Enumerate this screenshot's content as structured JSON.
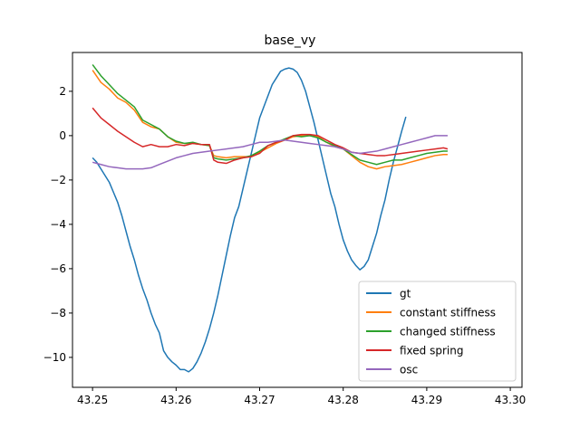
{
  "chart_data": {
    "type": "line",
    "title": "base_vy",
    "xlabel": "",
    "ylabel": "",
    "xlim": [
      43.2476,
      43.3014
    ],
    "ylim": [
      -11.35,
      3.75
    ],
    "xticks": [
      43.25,
      43.26,
      43.27,
      43.28,
      43.29,
      43.3
    ],
    "xtick_labels": [
      "43.25",
      "43.26",
      "43.27",
      "43.28",
      "43.29",
      "43.30"
    ],
    "yticks": [
      2,
      0,
      -2,
      -4,
      -6,
      -8,
      -10
    ],
    "ytick_labels": [
      "2",
      "0",
      "−2",
      "−4",
      "−6",
      "−8",
      "−10"
    ],
    "grid": false,
    "legend": {
      "position": "lower-right"
    },
    "series": [
      {
        "name": "gt",
        "color": "#1f77b4",
        "points": [
          [
            43.25,
            -1.0
          ],
          [
            43.2505,
            -1.2
          ],
          [
            43.251,
            -1.5
          ],
          [
            43.2515,
            -1.8
          ],
          [
            43.252,
            -2.1
          ],
          [
            43.2525,
            -2.55
          ],
          [
            43.253,
            -3.0
          ],
          [
            43.2535,
            -3.6
          ],
          [
            43.254,
            -4.3
          ],
          [
            43.2545,
            -5.0
          ],
          [
            43.255,
            -5.6
          ],
          [
            43.2555,
            -6.3
          ],
          [
            43.256,
            -6.9
          ],
          [
            43.2565,
            -7.4
          ],
          [
            43.257,
            -8.0
          ],
          [
            43.2575,
            -8.5
          ],
          [
            43.258,
            -8.9
          ],
          [
            43.2585,
            -9.7
          ],
          [
            43.259,
            -10.0
          ],
          [
            43.2595,
            -10.2
          ],
          [
            43.26,
            -10.35
          ],
          [
            43.2605,
            -10.55
          ],
          [
            43.261,
            -10.55
          ],
          [
            43.2615,
            -10.65
          ],
          [
            43.262,
            -10.5
          ],
          [
            43.2625,
            -10.2
          ],
          [
            43.263,
            -9.8
          ],
          [
            43.2635,
            -9.3
          ],
          [
            43.264,
            -8.7
          ],
          [
            43.2645,
            -8.0
          ],
          [
            43.265,
            -7.2
          ],
          [
            43.2655,
            -6.3
          ],
          [
            43.266,
            -5.4
          ],
          [
            43.2665,
            -4.5
          ],
          [
            43.267,
            -3.7
          ],
          [
            43.2675,
            -3.2
          ],
          [
            43.268,
            -2.4
          ],
          [
            43.2685,
            -1.6
          ],
          [
            43.269,
            -0.8
          ],
          [
            43.2695,
            0.0
          ],
          [
            43.27,
            0.8
          ],
          [
            43.2705,
            1.3
          ],
          [
            43.271,
            1.8
          ],
          [
            43.2715,
            2.3
          ],
          [
            43.272,
            2.6
          ],
          [
            43.2725,
            2.9
          ],
          [
            43.273,
            3.0
          ],
          [
            43.2735,
            3.05
          ],
          [
            43.274,
            3.0
          ],
          [
            43.2745,
            2.85
          ],
          [
            43.275,
            2.5
          ],
          [
            43.2755,
            2.0
          ],
          [
            43.276,
            1.3
          ],
          [
            43.2765,
            0.6
          ],
          [
            43.277,
            -0.2
          ],
          [
            43.2775,
            -1.0
          ],
          [
            43.278,
            -1.8
          ],
          [
            43.2785,
            -2.6
          ],
          [
            43.279,
            -3.2
          ],
          [
            43.2795,
            -4.0
          ],
          [
            43.28,
            -4.7
          ],
          [
            43.2805,
            -5.2
          ],
          [
            43.281,
            -5.6
          ],
          [
            43.2815,
            -5.85
          ],
          [
            43.282,
            -6.05
          ],
          [
            43.2825,
            -5.9
          ],
          [
            43.283,
            -5.6
          ],
          [
            43.2835,
            -5.0
          ],
          [
            43.284,
            -4.4
          ],
          [
            43.2845,
            -3.6
          ],
          [
            43.285,
            -2.9
          ],
          [
            43.2855,
            -2.0
          ],
          [
            43.286,
            -1.2
          ],
          [
            43.2865,
            -0.5
          ],
          [
            43.287,
            0.2
          ],
          [
            43.2875,
            0.85
          ]
        ]
      },
      {
        "name": "constant stiffness",
        "color": "#ff7f0e",
        "points": [
          [
            43.25,
            2.95
          ],
          [
            43.251,
            2.4
          ],
          [
            43.252,
            2.1
          ],
          [
            43.253,
            1.7
          ],
          [
            43.254,
            1.5
          ],
          [
            43.255,
            1.15
          ],
          [
            43.256,
            0.6
          ],
          [
            43.257,
            0.4
          ],
          [
            43.258,
            0.3
          ],
          [
            43.259,
            -0.05
          ],
          [
            43.26,
            -0.3
          ],
          [
            43.261,
            -0.35
          ],
          [
            43.262,
            -0.35
          ],
          [
            43.263,
            -0.4
          ],
          [
            43.264,
            -0.45
          ],
          [
            43.2645,
            -0.9
          ],
          [
            43.265,
            -0.95
          ],
          [
            43.266,
            -1.0
          ],
          [
            43.267,
            -0.95
          ],
          [
            43.268,
            -0.95
          ],
          [
            43.269,
            -0.95
          ],
          [
            43.27,
            -0.75
          ],
          [
            43.271,
            -0.55
          ],
          [
            43.272,
            -0.35
          ],
          [
            43.273,
            -0.2
          ],
          [
            43.274,
            -0.05
          ],
          [
            43.275,
            0.0
          ],
          [
            43.276,
            0.0
          ],
          [
            43.277,
            -0.05
          ],
          [
            43.278,
            -0.3
          ],
          [
            43.279,
            -0.5
          ],
          [
            43.28,
            -0.6
          ],
          [
            43.281,
            -0.9
          ],
          [
            43.282,
            -1.2
          ],
          [
            43.283,
            -1.4
          ],
          [
            43.284,
            -1.5
          ],
          [
            43.285,
            -1.4
          ],
          [
            43.286,
            -1.35
          ],
          [
            43.287,
            -1.3
          ],
          [
            43.288,
            -1.2
          ],
          [
            43.289,
            -1.1
          ],
          [
            43.29,
            -1.0
          ],
          [
            43.291,
            -0.9
          ],
          [
            43.292,
            -0.85
          ],
          [
            43.2925,
            -0.85
          ]
        ]
      },
      {
        "name": "changed stiffness",
        "color": "#2ca02c",
        "points": [
          [
            43.25,
            3.2
          ],
          [
            43.251,
            2.7
          ],
          [
            43.252,
            2.3
          ],
          [
            43.253,
            1.9
          ],
          [
            43.254,
            1.6
          ],
          [
            43.255,
            1.3
          ],
          [
            43.256,
            0.7
          ],
          [
            43.257,
            0.5
          ],
          [
            43.258,
            0.3
          ],
          [
            43.259,
            -0.05
          ],
          [
            43.26,
            -0.25
          ],
          [
            43.261,
            -0.35
          ],
          [
            43.262,
            -0.3
          ],
          [
            43.263,
            -0.4
          ],
          [
            43.264,
            -0.45
          ],
          [
            43.2645,
            -1.0
          ],
          [
            43.265,
            -1.05
          ],
          [
            43.266,
            -1.1
          ],
          [
            43.267,
            -1.05
          ],
          [
            43.268,
            -1.0
          ],
          [
            43.269,
            -0.9
          ],
          [
            43.27,
            -0.7
          ],
          [
            43.271,
            -0.45
          ],
          [
            43.272,
            -0.3
          ],
          [
            43.273,
            -0.15
          ],
          [
            43.274,
            0.0
          ],
          [
            43.275,
            -0.05
          ],
          [
            43.276,
            0.0
          ],
          [
            43.277,
            -0.1
          ],
          [
            43.278,
            -0.3
          ],
          [
            43.279,
            -0.45
          ],
          [
            43.28,
            -0.6
          ],
          [
            43.281,
            -0.85
          ],
          [
            43.282,
            -1.1
          ],
          [
            43.283,
            -1.2
          ],
          [
            43.284,
            -1.3
          ],
          [
            43.285,
            -1.2
          ],
          [
            43.286,
            -1.1
          ],
          [
            43.287,
            -1.1
          ],
          [
            43.288,
            -1.0
          ],
          [
            43.289,
            -0.9
          ],
          [
            43.29,
            -0.8
          ],
          [
            43.291,
            -0.75
          ],
          [
            43.292,
            -0.7
          ],
          [
            43.2925,
            -0.7
          ]
        ]
      },
      {
        "name": "fixed spring",
        "color": "#d62728",
        "points": [
          [
            43.25,
            1.25
          ],
          [
            43.251,
            0.8
          ],
          [
            43.252,
            0.5
          ],
          [
            43.253,
            0.2
          ],
          [
            43.254,
            -0.05
          ],
          [
            43.255,
            -0.3
          ],
          [
            43.256,
            -0.5
          ],
          [
            43.257,
            -0.4
          ],
          [
            43.258,
            -0.5
          ],
          [
            43.259,
            -0.5
          ],
          [
            43.26,
            -0.4
          ],
          [
            43.261,
            -0.45
          ],
          [
            43.262,
            -0.35
          ],
          [
            43.263,
            -0.4
          ],
          [
            43.264,
            -0.4
          ],
          [
            43.2645,
            -1.1
          ],
          [
            43.265,
            -1.2
          ],
          [
            43.266,
            -1.25
          ],
          [
            43.267,
            -1.1
          ],
          [
            43.268,
            -1.0
          ],
          [
            43.269,
            -0.95
          ],
          [
            43.27,
            -0.8
          ],
          [
            43.271,
            -0.45
          ],
          [
            43.272,
            -0.3
          ],
          [
            43.273,
            -0.2
          ],
          [
            43.274,
            0.0
          ],
          [
            43.275,
            0.05
          ],
          [
            43.276,
            0.05
          ],
          [
            43.277,
            0.0
          ],
          [
            43.278,
            -0.2
          ],
          [
            43.279,
            -0.4
          ],
          [
            43.28,
            -0.55
          ],
          [
            43.281,
            -0.75
          ],
          [
            43.282,
            -0.8
          ],
          [
            43.283,
            -0.85
          ],
          [
            43.284,
            -0.9
          ],
          [
            43.285,
            -0.9
          ],
          [
            43.286,
            -0.85
          ],
          [
            43.287,
            -0.8
          ],
          [
            43.288,
            -0.75
          ],
          [
            43.289,
            -0.7
          ],
          [
            43.29,
            -0.65
          ],
          [
            43.291,
            -0.6
          ],
          [
            43.292,
            -0.55
          ],
          [
            43.2925,
            -0.6
          ]
        ]
      },
      {
        "name": "osc",
        "color": "#9467bd",
        "points": [
          [
            43.25,
            -1.2
          ],
          [
            43.251,
            -1.3
          ],
          [
            43.252,
            -1.4
          ],
          [
            43.253,
            -1.45
          ],
          [
            43.254,
            -1.5
          ],
          [
            43.255,
            -1.5
          ],
          [
            43.256,
            -1.5
          ],
          [
            43.257,
            -1.45
          ],
          [
            43.258,
            -1.3
          ],
          [
            43.259,
            -1.15
          ],
          [
            43.26,
            -1.0
          ],
          [
            43.261,
            -0.9
          ],
          [
            43.262,
            -0.8
          ],
          [
            43.263,
            -0.75
          ],
          [
            43.264,
            -0.7
          ],
          [
            43.265,
            -0.65
          ],
          [
            43.266,
            -0.6
          ],
          [
            43.267,
            -0.55
          ],
          [
            43.268,
            -0.5
          ],
          [
            43.269,
            -0.4
          ],
          [
            43.27,
            -0.3
          ],
          [
            43.271,
            -0.3
          ],
          [
            43.272,
            -0.25
          ],
          [
            43.273,
            -0.2
          ],
          [
            43.274,
            -0.25
          ],
          [
            43.275,
            -0.3
          ],
          [
            43.276,
            -0.35
          ],
          [
            43.277,
            -0.4
          ],
          [
            43.278,
            -0.45
          ],
          [
            43.279,
            -0.5
          ],
          [
            43.28,
            -0.6
          ],
          [
            43.281,
            -0.75
          ],
          [
            43.282,
            -0.8
          ],
          [
            43.283,
            -0.75
          ],
          [
            43.284,
            -0.7
          ],
          [
            43.285,
            -0.6
          ],
          [
            43.286,
            -0.5
          ],
          [
            43.287,
            -0.4
          ],
          [
            43.288,
            -0.3
          ],
          [
            43.289,
            -0.2
          ],
          [
            43.29,
            -0.1
          ],
          [
            43.291,
            0.0
          ],
          [
            43.292,
            0.0
          ],
          [
            43.2925,
            0.0
          ]
        ]
      }
    ]
  }
}
